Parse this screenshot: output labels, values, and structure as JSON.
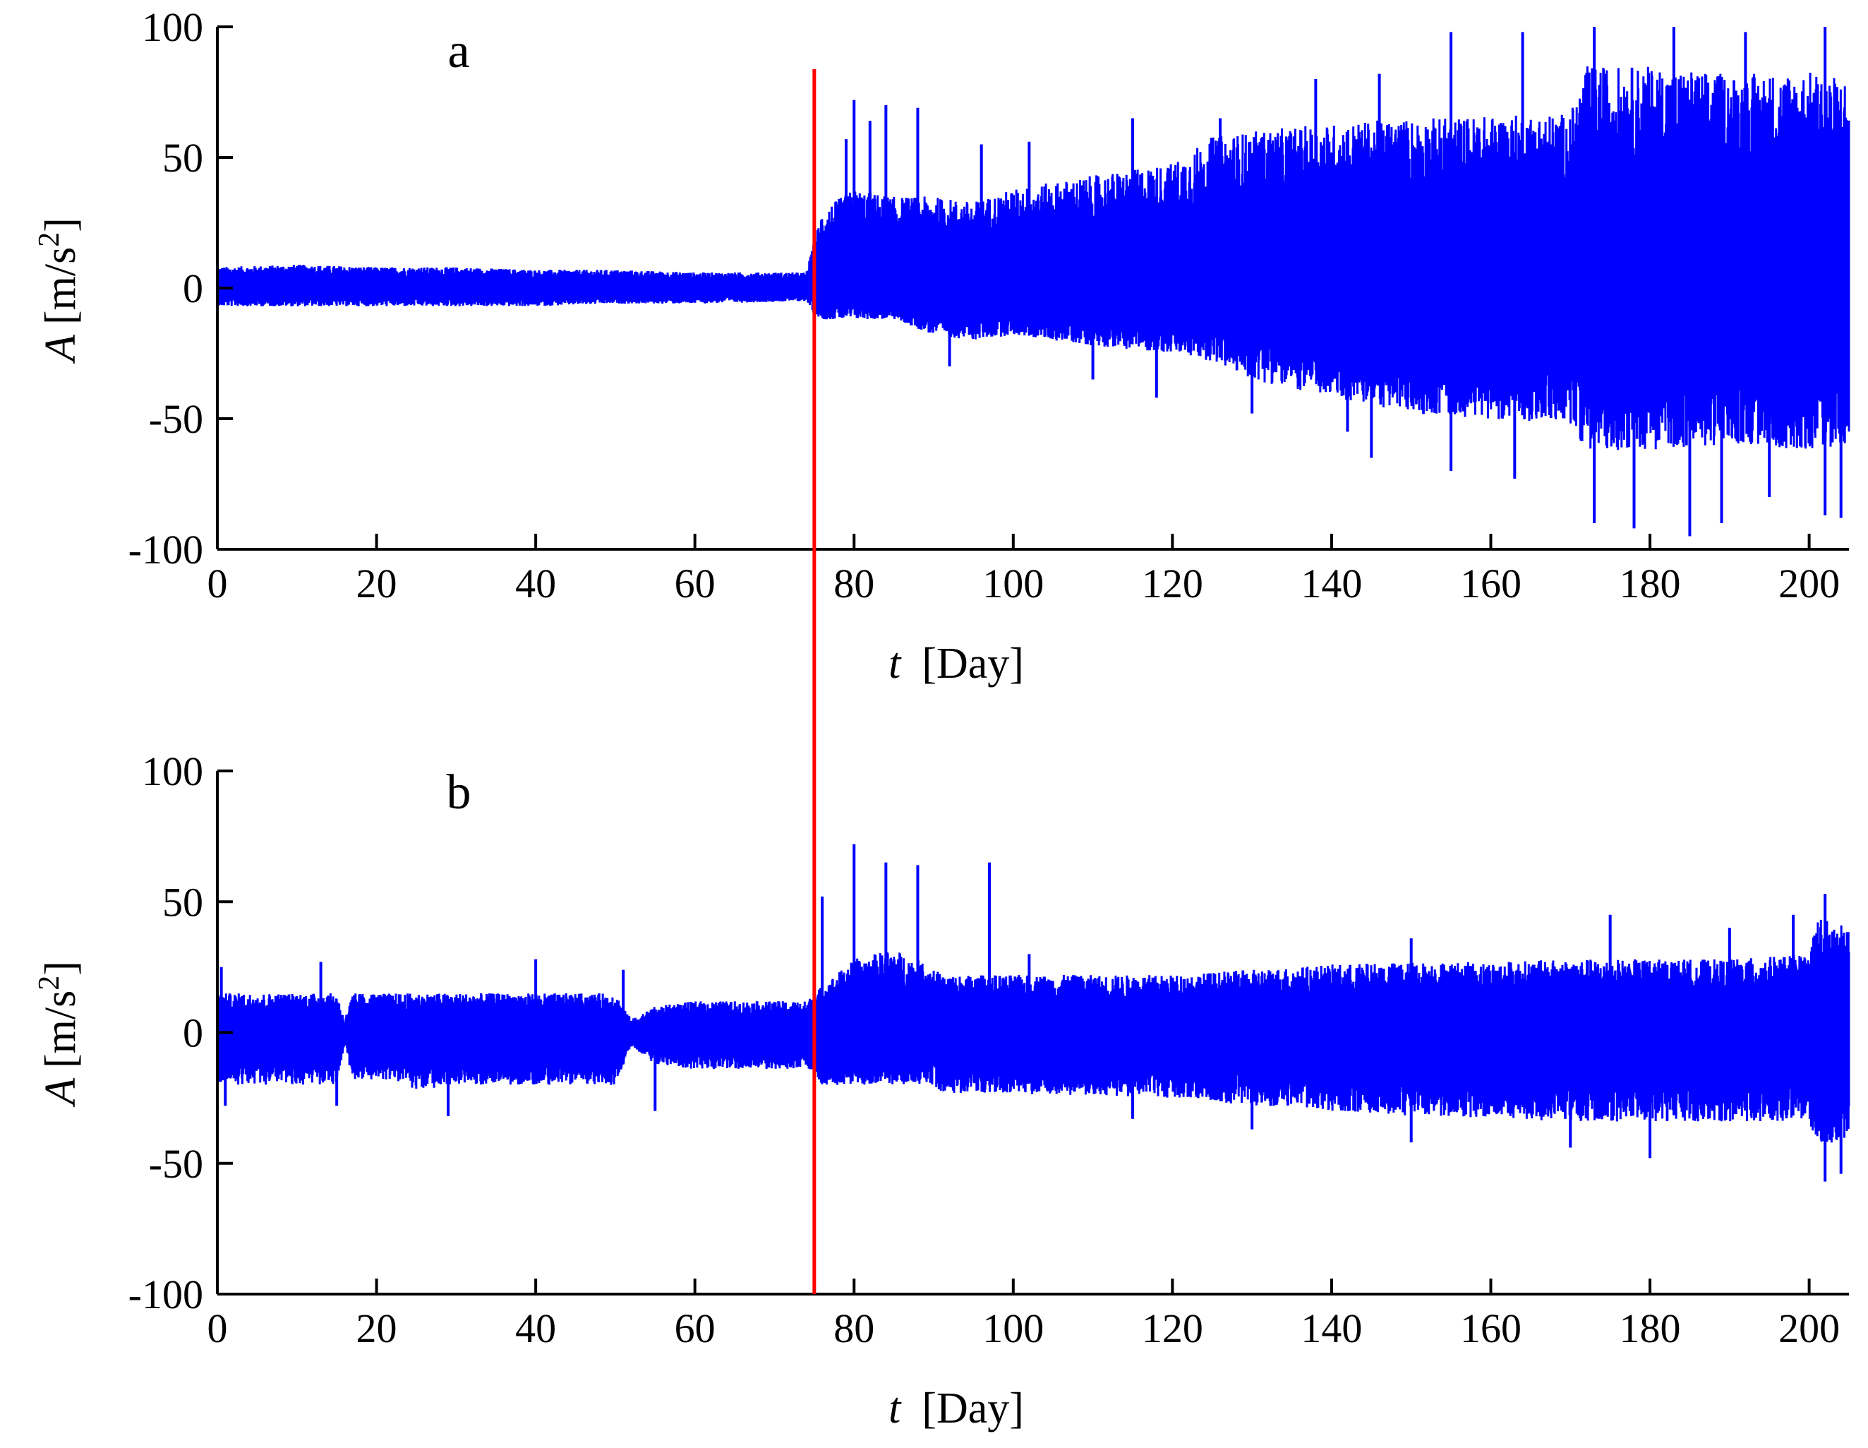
{
  "chart_data": [
    {
      "type": "line",
      "panel_label": "a",
      "xlabel_var": "t",
      "xlabel_unit": "[Day]",
      "ylabel_var": "A",
      "ylabel_unit": "[m/s",
      "ylabel_exp": "2",
      "ylabel_close": "]",
      "xlim": [
        0,
        205
      ],
      "ylim": [
        -100,
        100
      ],
      "xticks": [
        0,
        20,
        40,
        60,
        80,
        100,
        120,
        140,
        160,
        180,
        200
      ],
      "yticks": [
        -100,
        -50,
        0,
        50,
        100
      ],
      "series_color": "#0000ff",
      "grid": false,
      "envelope": {
        "x": [
          0,
          10,
          20,
          30,
          40,
          50,
          60,
          74,
          75,
          76,
          80,
          85,
          90,
          95,
          100,
          110,
          120,
          125,
          130,
          140,
          150,
          160,
          170,
          172,
          180,
          190,
          200,
          205
        ],
        "upper": [
          8,
          9,
          8,
          8,
          7,
          7,
          6,
          6,
          18,
          30,
          38,
          35,
          35,
          33,
          38,
          43,
          48,
          58,
          60,
          63,
          65,
          66,
          67,
          85,
          85,
          82,
          83,
          80
        ],
        "lower": [
          -7,
          -7,
          -7,
          -7,
          -7,
          -6,
          -6,
          -5,
          -10,
          -12,
          -12,
          -12,
          -18,
          -20,
          -18,
          -22,
          -25,
          -28,
          -35,
          -42,
          -48,
          -50,
          -52,
          -62,
          -62,
          -60,
          -62,
          -60
        ]
      },
      "spikes": [
        {
          "x": 79,
          "y": 57
        },
        {
          "x": 80,
          "y": 72
        },
        {
          "x": 82,
          "y": 64
        },
        {
          "x": 84,
          "y": 70
        },
        {
          "x": 88,
          "y": 69
        },
        {
          "x": 96,
          "y": 55
        },
        {
          "x": 102,
          "y": 56
        },
        {
          "x": 115,
          "y": 65
        },
        {
          "x": 126,
          "y": 65
        },
        {
          "x": 138,
          "y": 80
        },
        {
          "x": 146,
          "y": 82
        },
        {
          "x": 155,
          "y": 98
        },
        {
          "x": 164,
          "y": 98
        },
        {
          "x": 173,
          "y": 100
        },
        {
          "x": 183,
          "y": 100
        },
        {
          "x": 192,
          "y": 98
        },
        {
          "x": 202,
          "y": 100
        },
        {
          "x": 92,
          "y": -30
        },
        {
          "x": 110,
          "y": -35
        },
        {
          "x": 118,
          "y": -42
        },
        {
          "x": 130,
          "y": -48
        },
        {
          "x": 142,
          "y": -55
        },
        {
          "x": 145,
          "y": -65
        },
        {
          "x": 155,
          "y": -70
        },
        {
          "x": 163,
          "y": -73
        },
        {
          "x": 173,
          "y": -90
        },
        {
          "x": 178,
          "y": -92
        },
        {
          "x": 185,
          "y": -95
        },
        {
          "x": 189,
          "y": -90
        },
        {
          "x": 195,
          "y": -80
        },
        {
          "x": 202,
          "y": -87
        },
        {
          "x": 204,
          "y": -88
        }
      ]
    },
    {
      "type": "line",
      "panel_label": "b",
      "xlabel_var": "t",
      "xlabel_unit": "[Day]",
      "ylabel_var": "A",
      "ylabel_unit": "[m/s",
      "ylabel_exp": "2",
      "ylabel_close": "]",
      "xlim": [
        0,
        205
      ],
      "ylim": [
        -100,
        100
      ],
      "xticks": [
        0,
        20,
        40,
        60,
        80,
        100,
        120,
        140,
        160,
        180,
        200
      ],
      "yticks": [
        -100,
        -50,
        0,
        50,
        100
      ],
      "series_color": "#0000ff",
      "grid": false,
      "envelope": {
        "x": [
          0,
          5,
          15,
          16,
          17,
          22,
          25,
          30,
          40,
          45,
          50,
          52,
          55,
          60,
          74,
          75,
          76,
          80,
          85,
          90,
          91,
          100,
          110,
          120,
          130,
          140,
          150,
          160,
          170,
          180,
          190,
          200,
          201,
          205
        ],
        "upper": [
          15,
          15,
          15,
          5,
          15,
          15,
          15,
          15,
          15,
          15,
          15,
          5,
          10,
          12,
          12,
          15,
          18,
          28,
          32,
          25,
          22,
          22,
          22,
          22,
          24,
          26,
          27,
          27,
          28,
          28,
          28,
          30,
          45,
          40
        ],
        "lower": [
          -20,
          -20,
          -20,
          -5,
          -18,
          -18,
          -22,
          -20,
          -20,
          -20,
          -20,
          -5,
          -12,
          -14,
          -14,
          -15,
          -20,
          -20,
          -20,
          -20,
          -23,
          -24,
          -24,
          -25,
          -28,
          -30,
          -32,
          -33,
          -34,
          -34,
          -34,
          -34,
          -45,
          -40
        ]
      },
      "spikes": [
        {
          "x": 0.5,
          "y": 25
        },
        {
          "x": 13,
          "y": 27
        },
        {
          "x": 40,
          "y": 28
        },
        {
          "x": 51,
          "y": 24
        },
        {
          "x": 76,
          "y": 52
        },
        {
          "x": 80,
          "y": 72
        },
        {
          "x": 84,
          "y": 65
        },
        {
          "x": 88,
          "y": 64
        },
        {
          "x": 97,
          "y": 65
        },
        {
          "x": 102,
          "y": 30
        },
        {
          "x": 150,
          "y": 36
        },
        {
          "x": 175,
          "y": 45
        },
        {
          "x": 190,
          "y": 40
        },
        {
          "x": 198,
          "y": 45
        },
        {
          "x": 202,
          "y": 53
        },
        {
          "x": 1,
          "y": -28
        },
        {
          "x": 15,
          "y": -28
        },
        {
          "x": 29,
          "y": -32
        },
        {
          "x": 55,
          "y": -30
        },
        {
          "x": 115,
          "y": -33
        },
        {
          "x": 130,
          "y": -37
        },
        {
          "x": 150,
          "y": -42
        },
        {
          "x": 170,
          "y": -44
        },
        {
          "x": 180,
          "y": -48
        },
        {
          "x": 202,
          "y": -57
        },
        {
          "x": 204,
          "y": -54
        }
      ]
    }
  ],
  "marker": {
    "x": 75,
    "color": "#ff0000"
  }
}
